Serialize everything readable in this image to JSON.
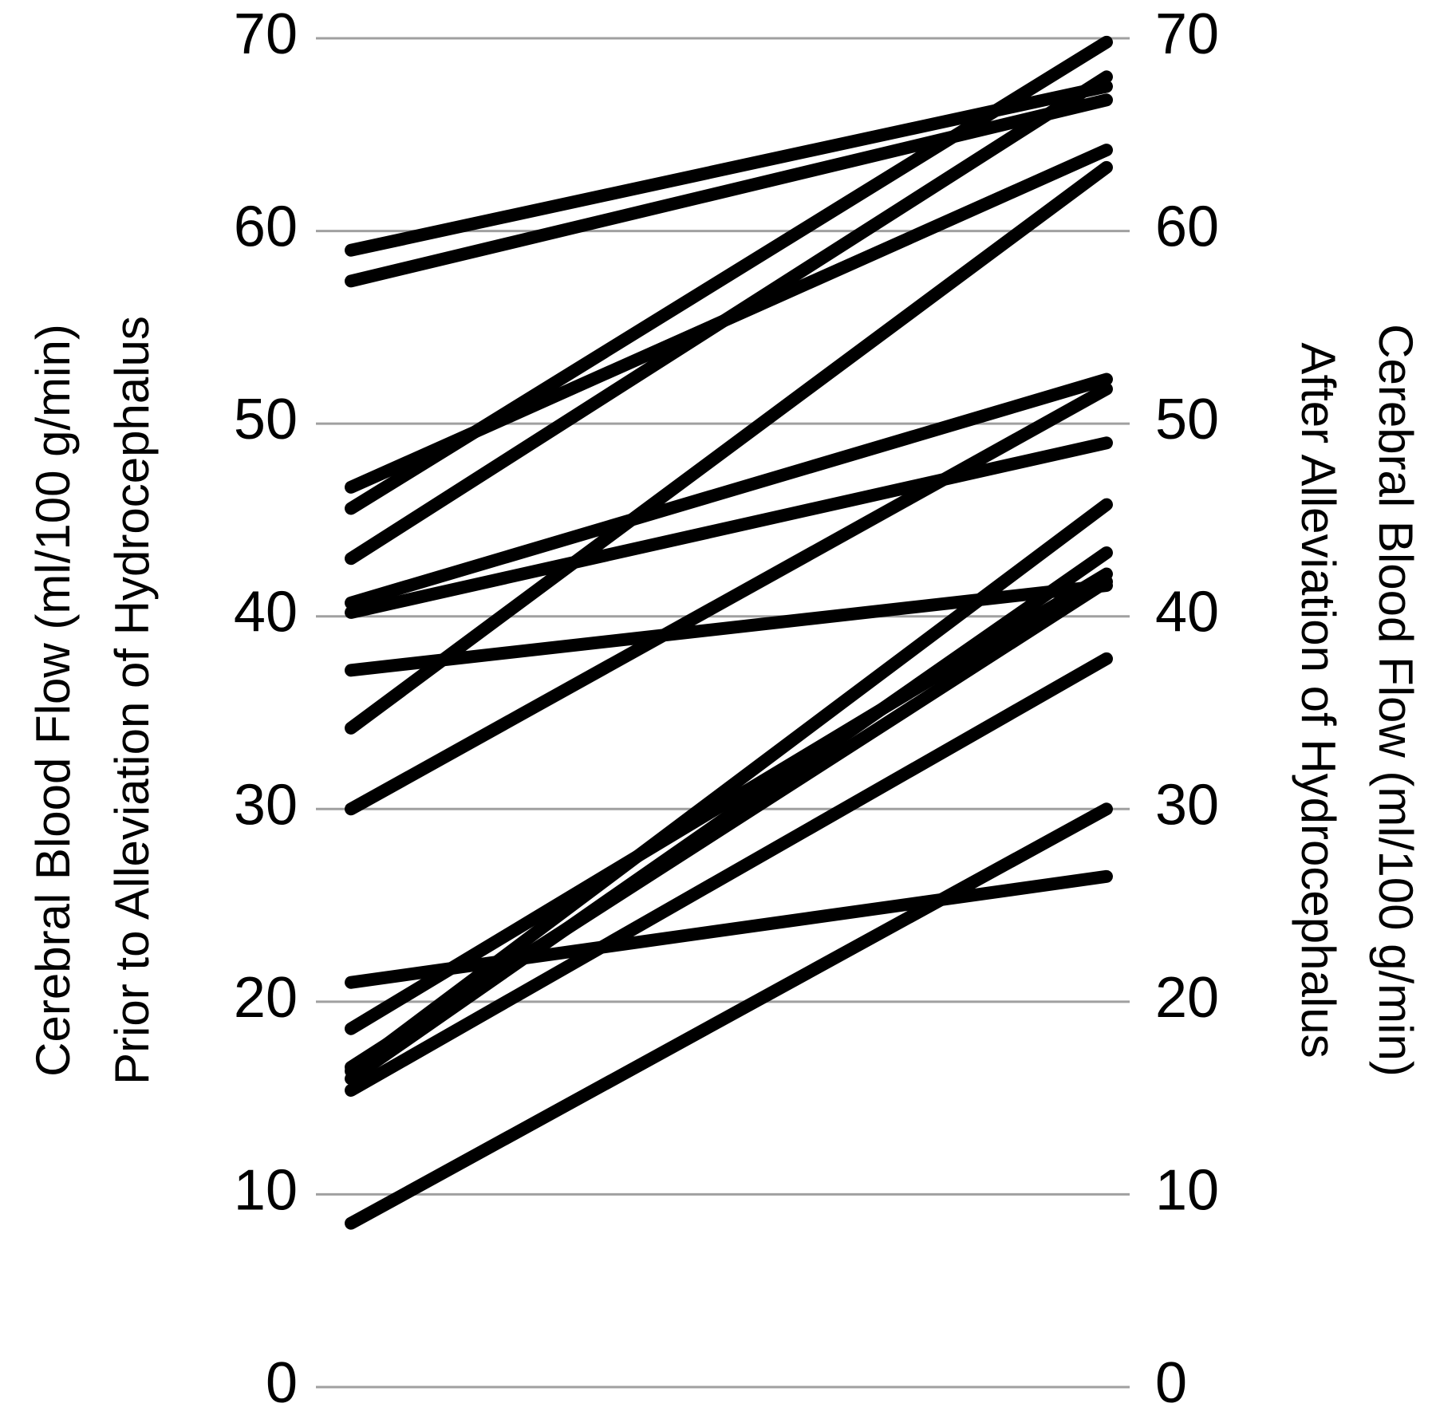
{
  "chart_data": {
    "type": "slope",
    "ylabel": [
      "Cerebral Blood Flow (ml/100 g/min)",
      "Prior to Alleviation of Hydrocephalus"
    ],
    "y2label": [
      "Cerebral Blood Flow (ml/100 g/min)",
      "After Alleviation of Hydrocephalus"
    ],
    "color": "#000000",
    "grid": true,
    "ylim": [
      0,
      70
    ],
    "yticks": [
      0,
      10,
      20,
      30,
      40,
      50,
      60,
      70
    ],
    "y2lim": [
      0,
      70
    ],
    "y2ticks": [
      0,
      10,
      20,
      30,
      40,
      50,
      60,
      70
    ],
    "series": [
      {
        "values": [
          59.0,
          67.5
        ]
      },
      {
        "values": [
          57.4,
          66.8
        ]
      },
      {
        "values": [
          46.7,
          64.2
        ]
      },
      {
        "values": [
          45.6,
          69.8
        ]
      },
      {
        "values": [
          43.0,
          68.0
        ]
      },
      {
        "values": [
          40.7,
          52.3
        ]
      },
      {
        "values": [
          40.2,
          49.0
        ]
      },
      {
        "values": [
          37.2,
          41.6
        ]
      },
      {
        "values": [
          34.2,
          63.3
        ]
      },
      {
        "values": [
          30.0,
          51.8
        ]
      },
      {
        "values": [
          21.0,
          26.5
        ]
      },
      {
        "values": [
          18.6,
          42.2
        ]
      },
      {
        "values": [
          16.6,
          41.8
        ]
      },
      {
        "values": [
          16.4,
          45.8
        ]
      },
      {
        "values": [
          16.0,
          43.3
        ]
      },
      {
        "values": [
          15.4,
          37.8
        ]
      },
      {
        "values": [
          8.5,
          30.0
        ]
      }
    ]
  }
}
